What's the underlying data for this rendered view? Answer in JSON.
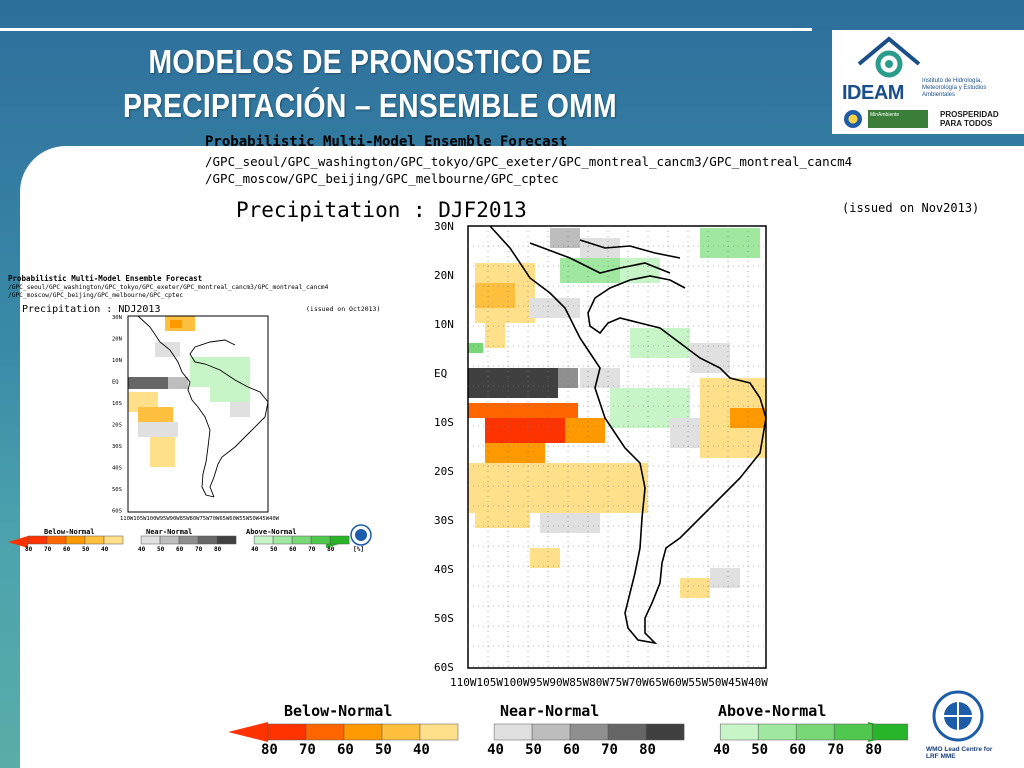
{
  "title": {
    "line1": "MODELOS DE PRONOSTICO DE",
    "line2": "PRECIPITACIÓN – ENSEMBLE   OMM"
  },
  "logo": {
    "ideam": "IDEAM",
    "ideam_desc": "Instituto de Hidrología, Meteorología y Estudios Ambientales",
    "minambiente": "MinAmbiente",
    "prosperidad": "PROSPERIDAD PARA TODOS"
  },
  "main_map": {
    "header": "Probabilistic Multi-Model Ensemble Forecast",
    "models_line1": "/GPC_seoul/GPC_washington/GPC_tokyo/GPC_exeter/GPC_montreal_cancm3/GPC_montreal_cancm4",
    "models_line2": "/GPC_moscow/GPC_beijing/GPC_melbourne/GPC_cptec",
    "variable": "Precipitation : DJF2013",
    "issued": "(issued on Nov2013)",
    "lat_labels": [
      "30N",
      "20N",
      "10N",
      "EQ",
      "10S",
      "20S",
      "30S",
      "40S",
      "50S",
      "60S"
    ],
    "lon_labels": "110W105W100W95W90W85W80W75W70W65W60W55W50W45W40W"
  },
  "inset_map": {
    "header": "Probabilistic Multi-Model Ensemble Forecast",
    "models_line1": "/GPC_seoul/GPC_washington/GPC_tokyo/GPC_exeter/GPC_montreal_cancm3/GPC_montreal_cancm4",
    "models_line2": "/GPC_moscow/GPC_beijing/GPC_melbourne/GPC_cptec",
    "variable": "Precipitation : NDJ2013",
    "issued": "(issued on Oct2013)",
    "lat_labels": [
      "30N",
      "20N",
      "10N",
      "EQ",
      "10S",
      "20S",
      "30S",
      "40S",
      "50S",
      "60S"
    ],
    "lon_labels": "110W105W100W95W90W85W80W75W70W65W60W55W50W45W40W"
  },
  "legend": {
    "below_title": "Below-Normal",
    "near_title": "Near-Normal",
    "above_title": "Above-Normal",
    "below_values": [
      "80",
      "70",
      "60",
      "50",
      "40"
    ],
    "near_values": [
      "40",
      "50",
      "60",
      "70",
      "80"
    ],
    "above_values": [
      "40",
      "50",
      "60",
      "70",
      "80"
    ],
    "unit": "[%]",
    "below_colors": [
      "#ff3300",
      "#ff6600",
      "#ff9900",
      "#ffc040",
      "#ffe08a"
    ],
    "near_colors": [
      "#e0e0e0",
      "#bdbdbd",
      "#8f8f8f",
      "#666666",
      "#404040"
    ],
    "above_colors": [
      "#c8f5c8",
      "#a0e8a0",
      "#78d878",
      "#50c850",
      "#28b428"
    ]
  },
  "wmo": {
    "caption": "WMO Lead Centre for LRF MME"
  },
  "colors": {
    "title_text": "#ffffff",
    "background_blue": "#2e6f9c",
    "ideam_blue": "#1a4f8a"
  }
}
